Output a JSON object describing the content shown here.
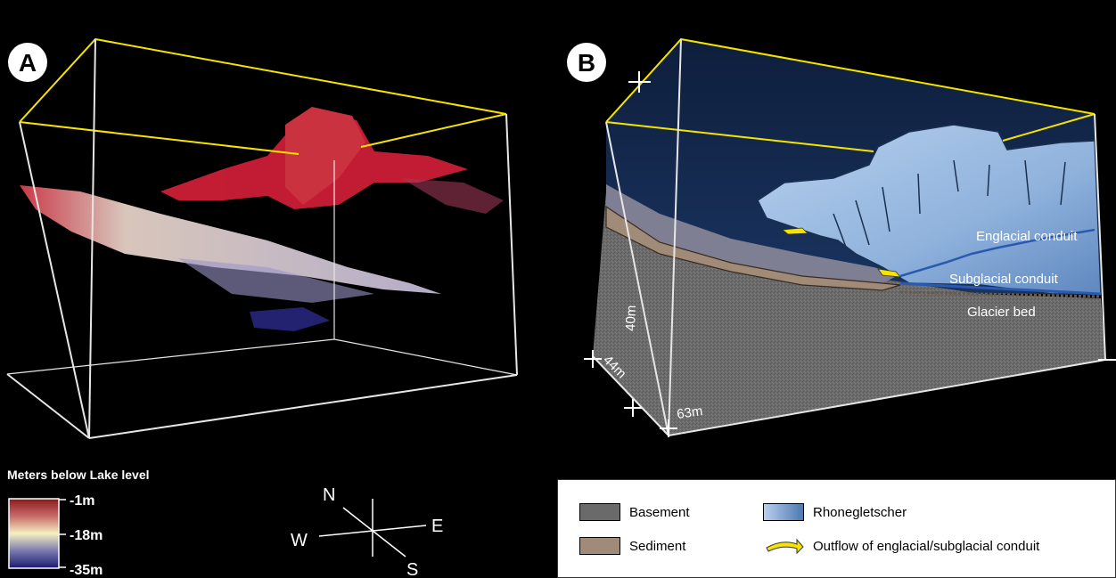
{
  "panels": {
    "a_letter": "A",
    "b_letter": "B"
  },
  "panel_b": {
    "englacial_label": "Englacial conduit",
    "subglacial_label": "Subglacial conduit",
    "glacier_bed_label": "Glacier bed",
    "dim_height": "40m",
    "dim_depth": "44m",
    "dim_width": "63m"
  },
  "colorscale": {
    "title": "Meters below Lake level",
    "ticks": [
      "-1m",
      "-18m",
      "-35m"
    ],
    "colors": [
      "#8b1a1a",
      "#f5f0c0",
      "#1a1a70"
    ]
  },
  "compass": {
    "n": "N",
    "e": "E",
    "s": "S",
    "w": "W"
  },
  "legend": {
    "basement": "Basement",
    "sediment": "Sediment",
    "rhonegletscher": "Rhonegletscher",
    "outflow": "Outflow of englacial/subglacial conduit"
  },
  "colors": {
    "frame_yellow": "#f5e400",
    "basement": "#6a6a6a",
    "sediment": "#a08a78",
    "ice": "#9bbbe0",
    "sky": "#14274a"
  }
}
